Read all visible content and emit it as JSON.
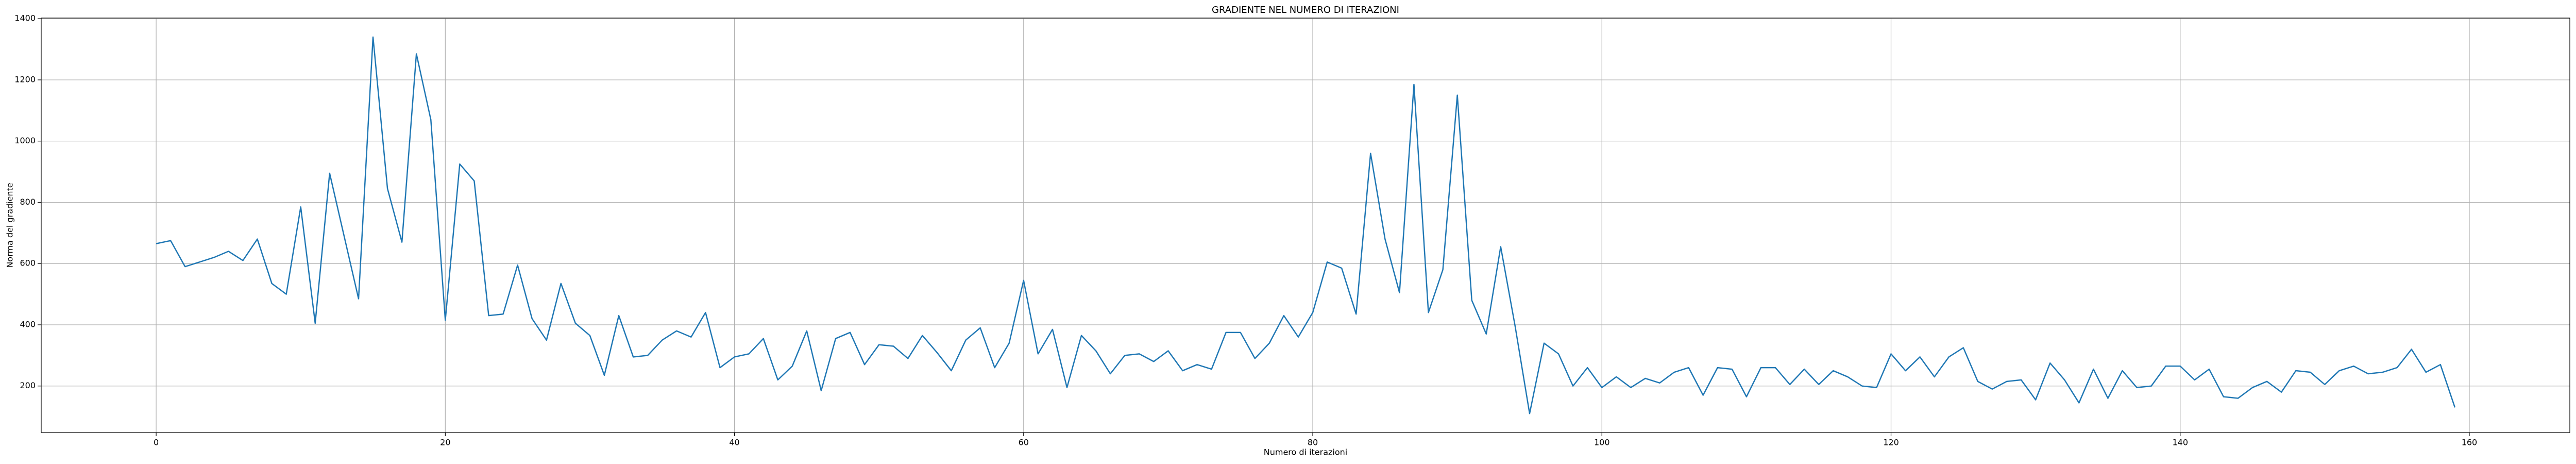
{
  "chart_data": {
    "type": "line",
    "title": "GRADIENTE NEL NUMERO DI ITERAZIONI",
    "xlabel": "Numero di iterazioni",
    "ylabel": "Norma del gradiente",
    "color": "#1f77b4",
    "grid": true,
    "x": [
      0,
      1,
      2,
      3,
      4,
      5,
      6,
      7,
      8,
      9,
      10,
      11,
      12,
      13,
      14,
      15,
      16,
      17,
      18,
      19,
      20,
      21,
      22,
      23,
      24,
      25,
      26,
      27,
      28,
      29,
      30,
      31,
      32,
      33,
      34,
      35,
      36,
      37,
      38,
      39,
      40,
      41,
      42,
      43,
      44,
      45,
      46,
      47,
      48,
      49,
      50,
      51,
      52,
      53,
      54,
      55,
      56,
      57,
      58,
      59,
      60,
      61,
      62,
      63,
      64,
      65,
      66,
      67,
      68,
      69,
      70,
      71,
      72,
      73,
      74,
      75,
      76,
      77,
      78,
      79,
      80,
      81,
      82,
      83,
      84,
      85,
      86,
      87,
      88,
      89,
      90,
      91,
      92,
      93,
      94,
      95,
      96,
      97,
      98,
      99,
      100,
      101,
      102,
      103,
      104,
      105,
      106,
      107,
      108,
      109,
      110,
      111,
      112,
      113,
      114,
      115,
      116,
      117,
      118,
      119,
      120,
      121,
      122,
      123,
      124,
      125,
      126,
      127,
      128,
      129,
      130,
      131,
      132,
      133,
      134,
      135,
      136,
      137,
      138,
      139,
      140,
      141,
      142,
      143,
      144,
      145,
      146,
      147,
      148,
      149,
      150,
      151,
      152,
      153,
      154,
      155,
      156,
      157,
      158,
      159
    ],
    "values": [
      665,
      675,
      590,
      605,
      620,
      640,
      610,
      680,
      535,
      500,
      785,
      405,
      895,
      690,
      485,
      1340,
      845,
      670,
      1285,
      1070,
      415,
      925,
      870,
      430,
      435,
      595,
      420,
      350,
      535,
      405,
      365,
      235,
      430,
      295,
      300,
      350,
      380,
      360,
      440,
      260,
      295,
      305,
      355,
      220,
      265,
      380,
      185,
      355,
      375,
      270,
      335,
      330,
      290,
      365,
      310,
      250,
      350,
      390,
      260,
      340,
      545,
      305,
      385,
      195,
      365,
      315,
      240,
      300,
      305,
      280,
      315,
      250,
      270,
      255,
      375,
      375,
      290,
      340,
      430,
      360,
      440,
      605,
      585,
      435,
      960,
      680,
      505,
      1185,
      440,
      580,
      1150,
      480,
      370,
      655,
      395,
      110,
      340,
      305,
      200,
      260,
      195,
      230,
      195,
      225,
      210,
      245,
      260,
      170,
      260,
      255,
      165,
      260,
      260,
      205,
      255,
      205,
      250,
      230,
      200,
      195,
      305,
      250,
      295,
      230,
      295,
      325,
      215,
      190,
      215,
      220,
      155,
      275,
      220,
      145,
      255,
      160,
      250,
      195,
      200,
      265,
      265,
      220,
      255,
      165,
      160,
      195,
      215,
      180,
      250,
      245,
      205,
      250,
      265,
      240,
      245,
      260,
      320,
      245,
      270,
      130
    ],
    "xlim": [
      -7.95,
      166.95
    ],
    "xticks": [
      0,
      20,
      40,
      60,
      80,
      100,
      120,
      140,
      160
    ],
    "ylim": [
      48,
      1402
    ],
    "yticks": [
      200,
      400,
      600,
      800,
      1000,
      1200,
      1400
    ]
  }
}
